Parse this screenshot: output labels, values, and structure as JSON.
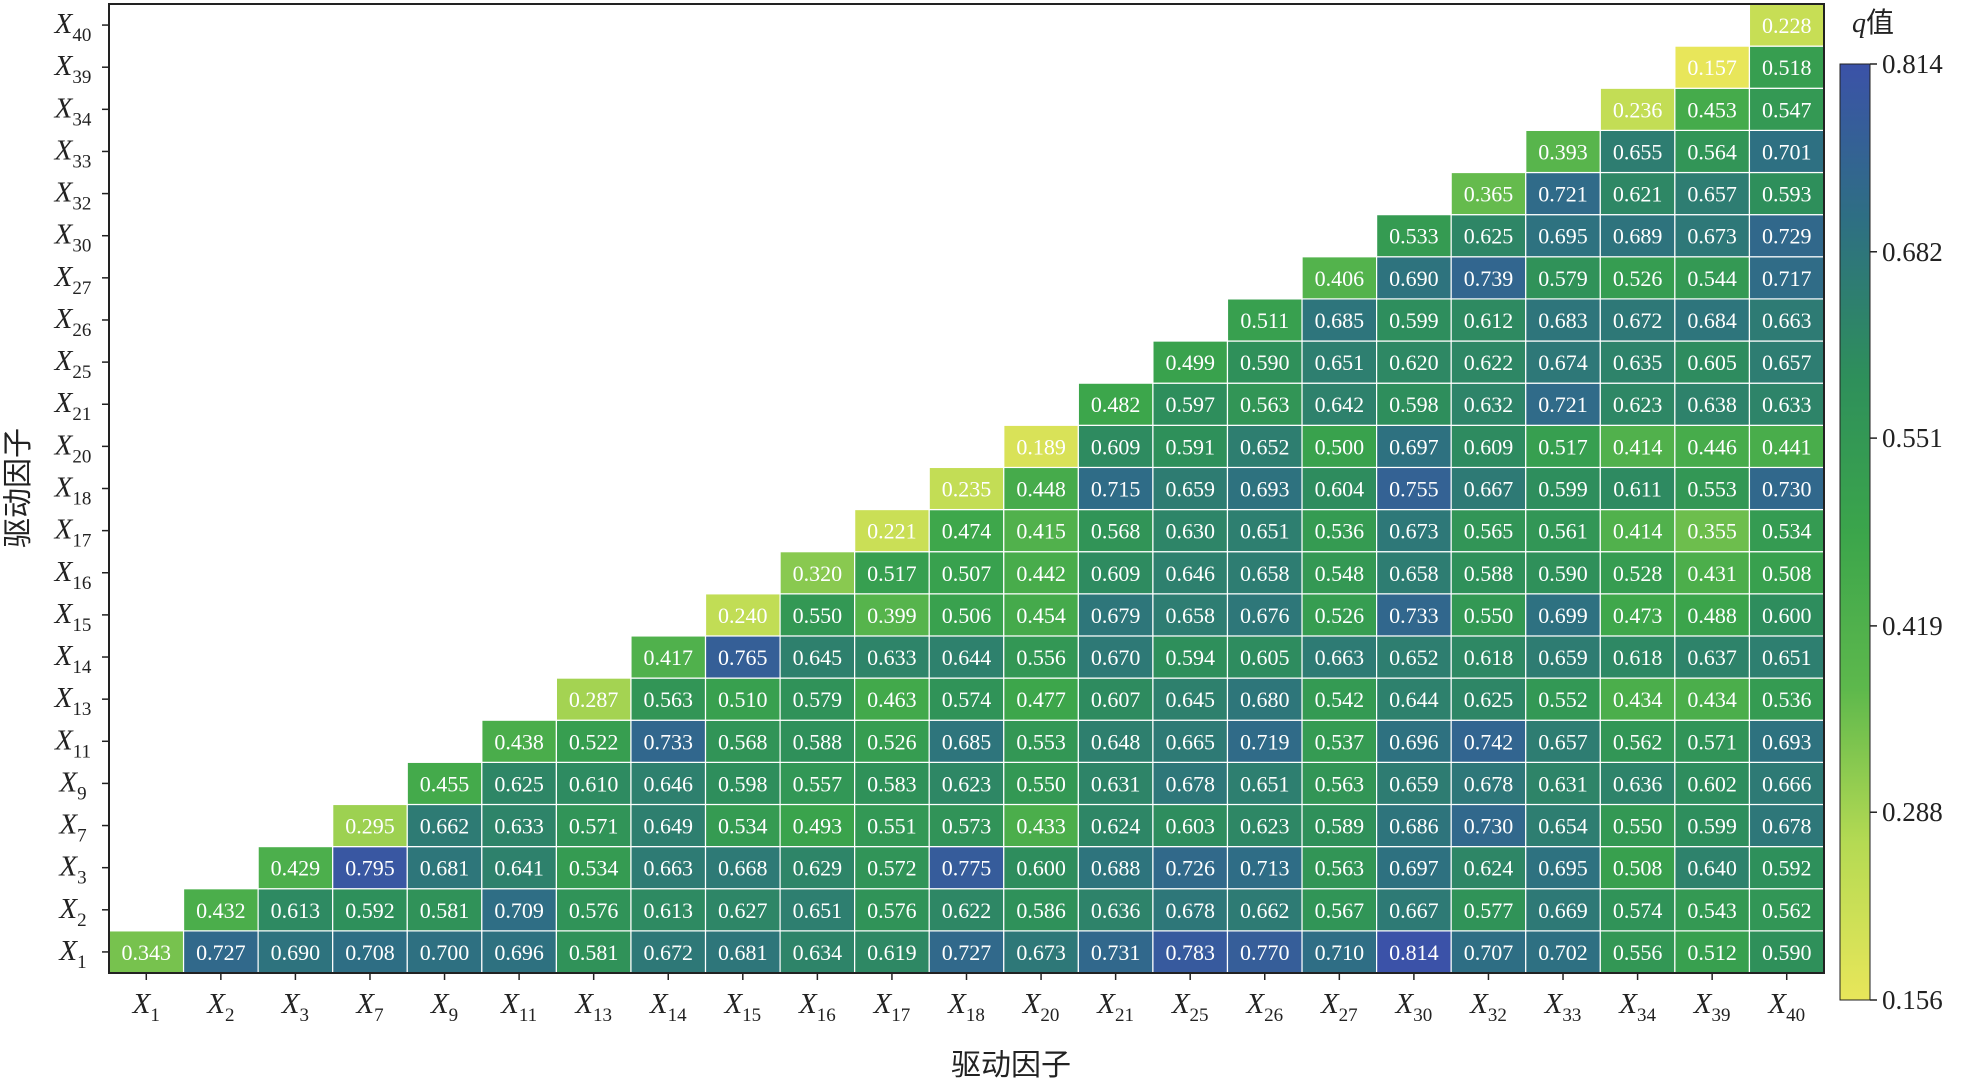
{
  "chart_data": {
    "type": "heatmap",
    "xlabel": "驱动因子",
    "ylabel": "驱动因子",
    "factors": [
      {
        "name": "X",
        "sub": "1"
      },
      {
        "name": "X",
        "sub": "2"
      },
      {
        "name": "X",
        "sub": "3"
      },
      {
        "name": "X",
        "sub": "7"
      },
      {
        "name": "X",
        "sub": "9"
      },
      {
        "name": "X",
        "sub": "11"
      },
      {
        "name": "X",
        "sub": "13"
      },
      {
        "name": "X",
        "sub": "14"
      },
      {
        "name": "X",
        "sub": "15"
      },
      {
        "name": "X",
        "sub": "16"
      },
      {
        "name": "X",
        "sub": "17"
      },
      {
        "name": "X",
        "sub": "18"
      },
      {
        "name": "X",
        "sub": "20"
      },
      {
        "name": "X",
        "sub": "21"
      },
      {
        "name": "X",
        "sub": "25"
      },
      {
        "name": "X",
        "sub": "26"
      },
      {
        "name": "X",
        "sub": "27"
      },
      {
        "name": "X",
        "sub": "30"
      },
      {
        "name": "X",
        "sub": "32"
      },
      {
        "name": "X",
        "sub": "33"
      },
      {
        "name": "X",
        "sub": "34"
      },
      {
        "name": "X",
        "sub": "39"
      },
      {
        "name": "X",
        "sub": "40"
      }
    ],
    "rows_note": "rows listed bottom (X1) to top (X40); row i holds values for columns i..22",
    "rows": [
      [
        "0.343",
        "0.727",
        "0.690",
        "0.708",
        "0.700",
        "0.696",
        "0.581",
        "0.672",
        "0.681",
        "0.634",
        "0.619",
        "0.727",
        "0.673",
        "0.731",
        "0.783",
        "0.770",
        "0.710",
        "0.814",
        "0.707",
        "0.702",
        "0.556",
        "0.512",
        "0.590"
      ],
      [
        "0.432",
        "0.613",
        "0.592",
        "0.581",
        "0.709",
        "0.576",
        "0.613",
        "0.627",
        "0.651",
        "0.576",
        "0.622",
        "0.586",
        "0.636",
        "0.678",
        "0.662",
        "0.567",
        "0.667",
        "0.577",
        "0.669",
        "0.574",
        "0.543",
        "0.562"
      ],
      [
        "0.429",
        "0.795",
        "0.681",
        "0.641",
        "0.534",
        "0.663",
        "0.668",
        "0.629",
        "0.572",
        "0.775",
        "0.600",
        "0.688",
        "0.726",
        "0.713",
        "0.563",
        "0.697",
        "0.624",
        "0.695",
        "0.508",
        "0.640",
        "0.592"
      ],
      [
        "0.295",
        "0.662",
        "0.633",
        "0.571",
        "0.649",
        "0.534",
        "0.493",
        "0.551",
        "0.573",
        "0.433",
        "0.624",
        "0.603",
        "0.623",
        "0.589",
        "0.686",
        "0.730",
        "0.654",
        "0.550",
        "0.599",
        "0.678"
      ],
      [
        "0.455",
        "0.625",
        "0.610",
        "0.646",
        "0.598",
        "0.557",
        "0.583",
        "0.623",
        "0.550",
        "0.631",
        "0.678",
        "0.651",
        "0.563",
        "0.659",
        "0.678",
        "0.631",
        "0.636",
        "0.602",
        "0.666"
      ],
      [
        "0.438",
        "0.522",
        "0.733",
        "0.568",
        "0.588",
        "0.526",
        "0.685",
        "0.553",
        "0.648",
        "0.665",
        "0.719",
        "0.537",
        "0.696",
        "0.742",
        "0.657",
        "0.562",
        "0.571",
        "0.693"
      ],
      [
        "0.287",
        "0.563",
        "0.510",
        "0.579",
        "0.463",
        "0.574",
        "0.477",
        "0.607",
        "0.645",
        "0.680",
        "0.542",
        "0.644",
        "0.625",
        "0.552",
        "0.434",
        "0.434",
        "0.536"
      ],
      [
        "0.417",
        "0.765",
        "0.645",
        "0.633",
        "0.644",
        "0.556",
        "0.670",
        "0.594",
        "0.605",
        "0.663",
        "0.652",
        "0.618",
        "0.659",
        "0.618",
        "0.637",
        "0.651"
      ],
      [
        "0.240",
        "0.550",
        "0.399",
        "0.506",
        "0.454",
        "0.679",
        "0.658",
        "0.676",
        "0.526",
        "0.733",
        "0.550",
        "0.699",
        "0.473",
        "0.488",
        "0.600"
      ],
      [
        "0.320",
        "0.517",
        "0.507",
        "0.442",
        "0.609",
        "0.646",
        "0.658",
        "0.548",
        "0.658",
        "0.588",
        "0.590",
        "0.528",
        "0.431",
        "0.508"
      ],
      [
        "0.221",
        "0.474",
        "0.415",
        "0.568",
        "0.630",
        "0.651",
        "0.536",
        "0.673",
        "0.565",
        "0.561",
        "0.414",
        "0.355",
        "0.534"
      ],
      [
        "0.235",
        "0.448",
        "0.715",
        "0.659",
        "0.693",
        "0.604",
        "0.755",
        "0.667",
        "0.599",
        "0.611",
        "0.553",
        "0.730"
      ],
      [
        "0.189",
        "0.609",
        "0.591",
        "0.652",
        "0.500",
        "0.697",
        "0.609",
        "0.517",
        "0.414",
        "0.446",
        "0.441"
      ],
      [
        "0.482",
        "0.597",
        "0.563",
        "0.642",
        "0.598",
        "0.632",
        "0.721",
        "0.623",
        "0.638",
        "0.633"
      ],
      [
        "0.499",
        "0.590",
        "0.651",
        "0.620",
        "0.622",
        "0.674",
        "0.635",
        "0.605",
        "0.657"
      ],
      [
        "0.511",
        "0.685",
        "0.599",
        "0.612",
        "0.683",
        "0.672",
        "0.684",
        "0.663"
      ],
      [
        "0.406",
        "0.690",
        "0.739",
        "0.579",
        "0.526",
        "0.544",
        "0.717"
      ],
      [
        "0.533",
        "0.625",
        "0.695",
        "0.689",
        "0.673",
        "0.729"
      ],
      [
        "0.365",
        "0.721",
        "0.621",
        "0.657",
        "0.593"
      ],
      [
        "0.393",
        "0.655",
        "0.564",
        "0.701"
      ],
      [
        "0.236",
        "0.453",
        "0.547"
      ],
      [
        "0.157",
        "0.518"
      ],
      [
        "0.228"
      ]
    ],
    "colorbar": {
      "title_q": "q",
      "title_rest": "值",
      "ticks": [
        "0.814",
        "0.682",
        "0.551",
        "0.419",
        "0.288",
        "0.156"
      ],
      "min": 0.156,
      "max": 0.814,
      "colors": [
        "#e8e65a",
        "#b5da53",
        "#5db84c",
        "#3ba54b",
        "#2e8f5b",
        "#2e6f83",
        "#3b52a8"
      ]
    }
  }
}
